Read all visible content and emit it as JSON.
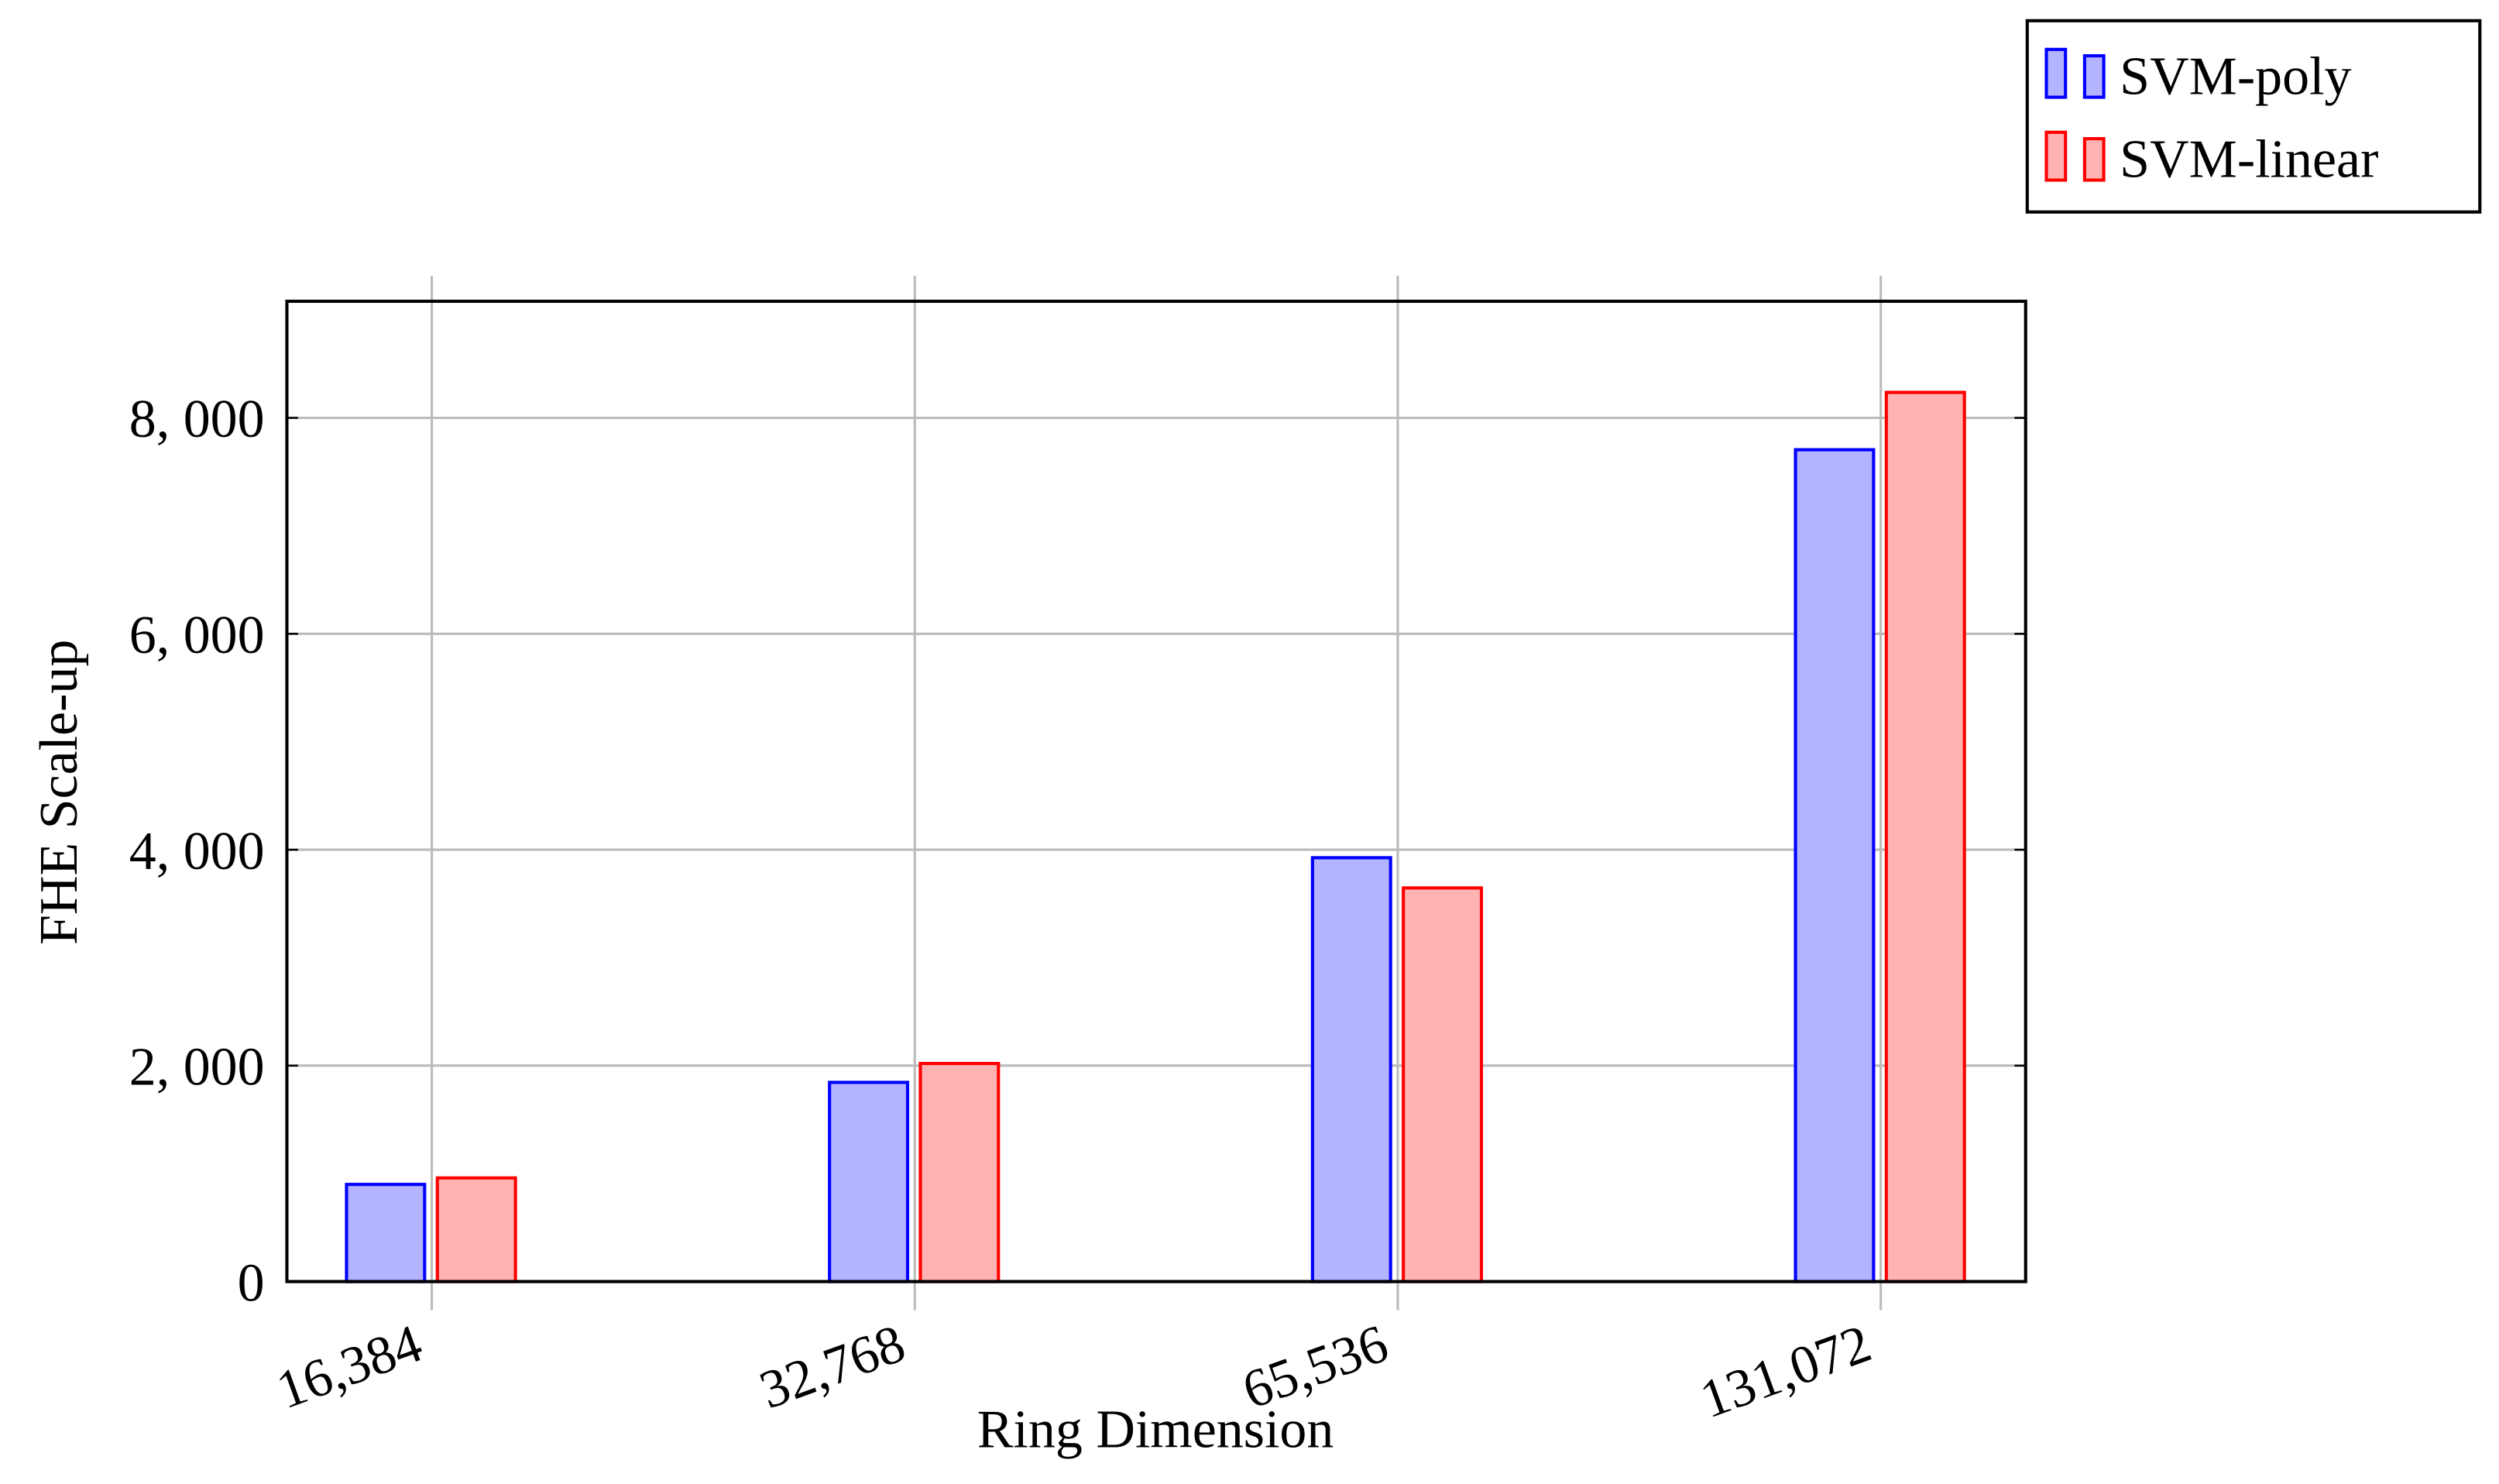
{
  "chart_data": {
    "type": "bar",
    "xlabel": "Ring Dimension",
    "ylabel": "FHE Scale-up",
    "categories": [
      "16,384",
      "32,768",
      "65,536",
      "131,072"
    ],
    "series": [
      {
        "name": "SVM-poly",
        "color": "#0000ff",
        "fill": "#b3b3ff",
        "values": [
          900,
          1845,
          3926,
          7705
        ]
      },
      {
        "name": "SVM-linear",
        "color": "#ff0000",
        "fill": "#ffb3b3",
        "values": [
          960,
          2020,
          3646,
          8236
        ]
      }
    ],
    "ylim": [
      0,
      9080
    ],
    "yticks": [
      0,
      {
        "value": 2000,
        "label": "2, 000"
      },
      {
        "value": 4000,
        "label": "4, 000"
      },
      {
        "value": 6000,
        "label": "6, 000"
      },
      {
        "value": 8000,
        "label": "8, 000"
      }
    ],
    "grid": true,
    "legend": "top-right"
  }
}
